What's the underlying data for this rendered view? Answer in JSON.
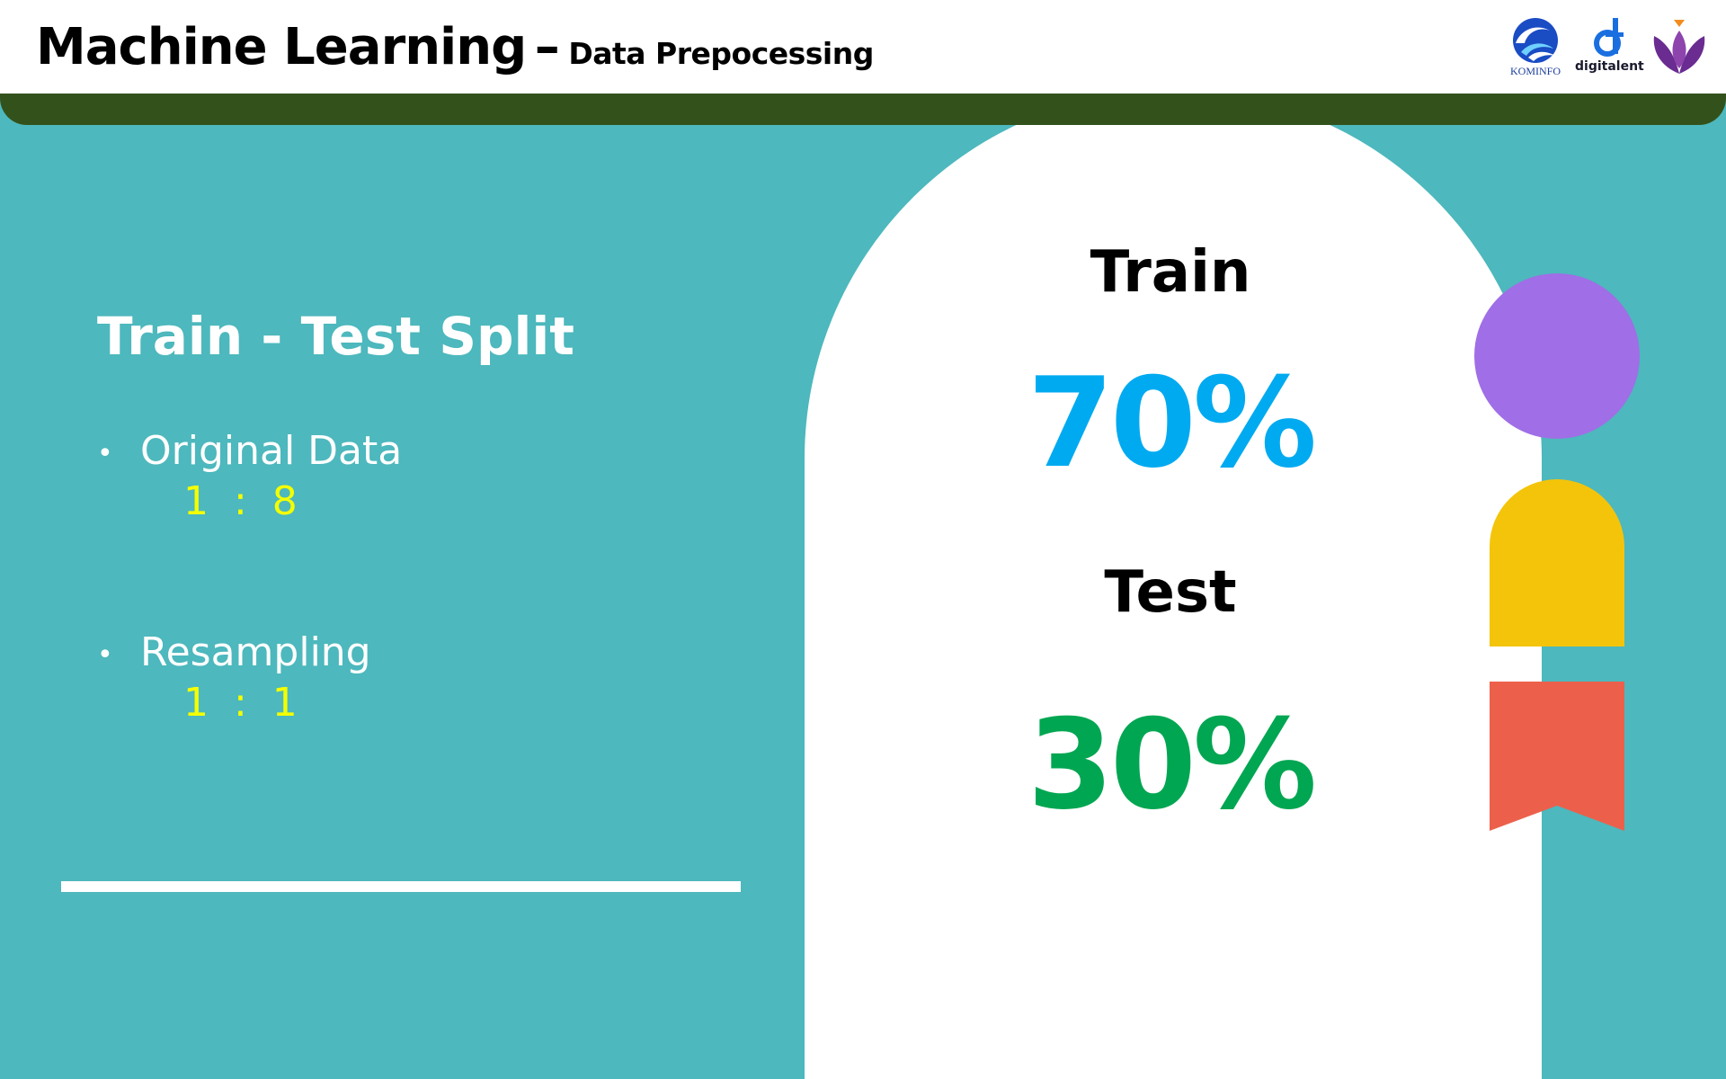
{
  "header": {
    "title": "Machine Learning",
    "dash": "–",
    "subtitle": "Data Prepocessing"
  },
  "logos": {
    "kominfo": {
      "text": "KOMINFO",
      "icon": "kominfo-logo"
    },
    "digitalent": {
      "text": "digitalent",
      "icon": "digitalent-logo"
    },
    "lotus": {
      "icon": "lotus-logo"
    }
  },
  "content": {
    "section_title": "Train - Test Split",
    "bullets": [
      {
        "label": "Original Data",
        "ratio": "1  :  8"
      },
      {
        "label": "Resampling",
        "ratio": "1  :  1"
      }
    ],
    "bullet_symbol": "•"
  },
  "split": {
    "train_label": "Train",
    "train_pct": "70%",
    "test_label": "Test",
    "test_pct": "30%"
  },
  "colors": {
    "background": "#4db8bd",
    "header_bar": "#33521b",
    "ratio_text": "#f4ff00",
    "train_pct": "#00aaf0",
    "test_pct": "#00a651",
    "circle": "#a06ee6",
    "dome": "#f4c40a",
    "ribbon": "#ec604b"
  }
}
